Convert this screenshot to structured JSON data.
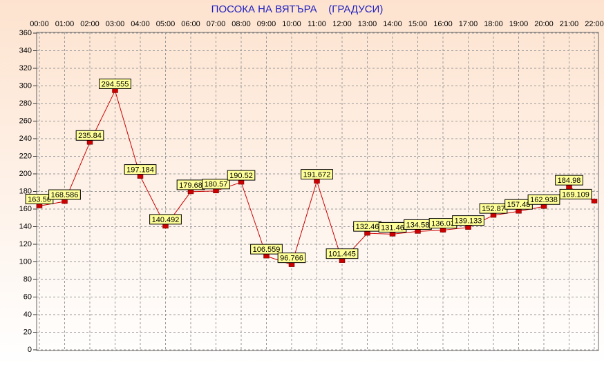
{
  "chart_data": {
    "type": "line",
    "title": "ПОСОКА НА ВЯТЪРА    (ГРАДУСИ)",
    "categories": [
      "00:00",
      "01:00",
      "02:00",
      "03:00",
      "04:00",
      "05:00",
      "06:00",
      "07:00",
      "08:00",
      "09:00",
      "10:00",
      "11:00",
      "12:00",
      "13:00",
      "14:00",
      "15:00",
      "16:00",
      "17:00",
      "18:00",
      "19:00",
      "20:00",
      "21:00",
      "22:00"
    ],
    "series": [
      {
        "name": "Посока",
        "color": "#cc0000",
        "values": [
          163.56,
          168.586,
          235.84,
          294.555,
          197.184,
          140.492,
          179.68,
          180.57,
          190.52,
          106.559,
          96.766,
          191.672,
          101.445,
          132.46,
          131.46,
          134.58,
          136.03,
          139.133,
          152.87,
          157.48,
          162.938,
          184.98,
          169.109
        ]
      }
    ],
    "ylim": [
      0,
      360
    ],
    "yticks": [
      0,
      20,
      40,
      60,
      80,
      100,
      120,
      140,
      160,
      180,
      200,
      220,
      240,
      260,
      280,
      300,
      320,
      340,
      360
    ],
    "grid": true
  }
}
